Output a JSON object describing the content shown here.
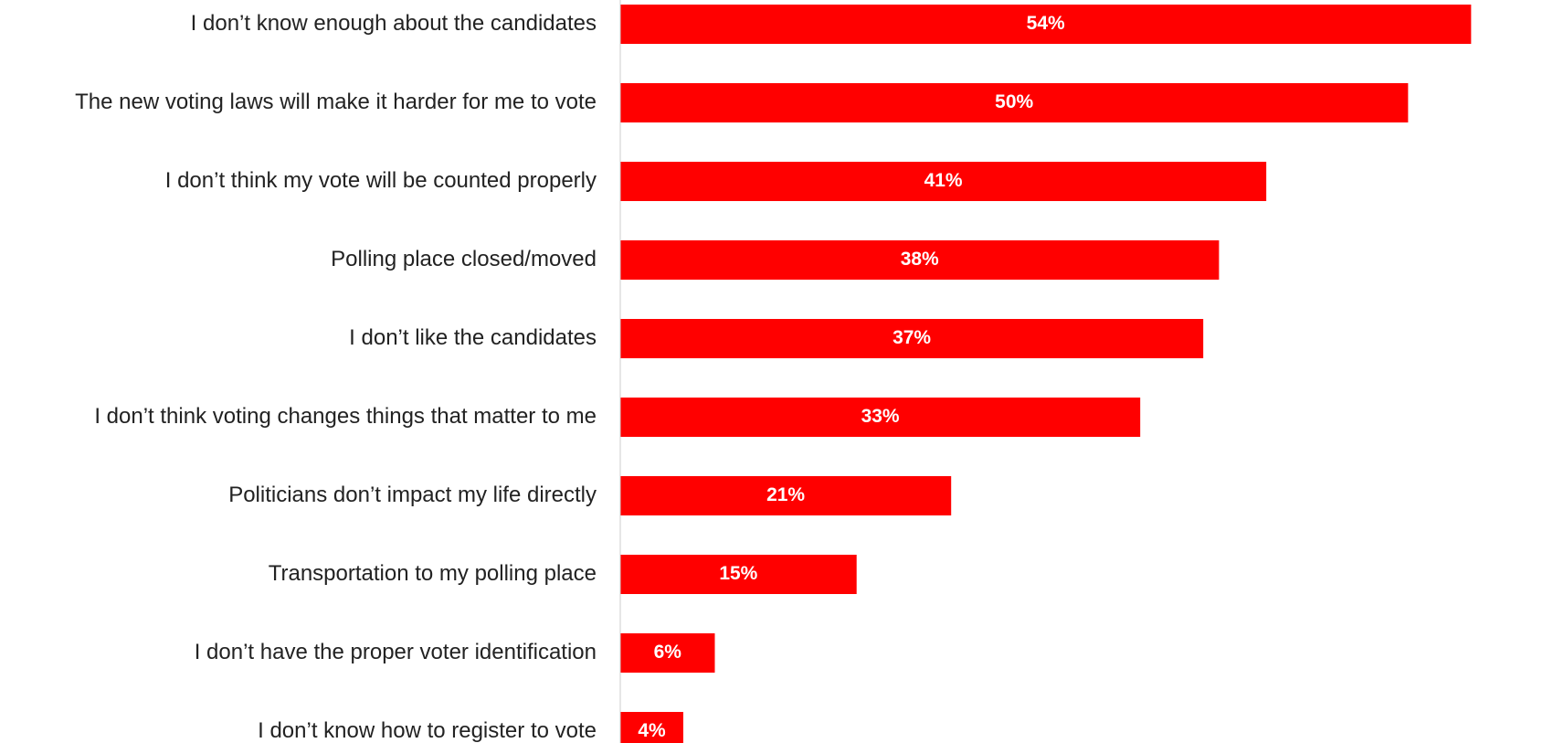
{
  "chart_data": {
    "type": "bar",
    "orientation": "horizontal",
    "categories": [
      "I don’t know enough about the candidates",
      "The new voting laws will make it harder for me to vote",
      "I don’t think my vote will be counted properly",
      "Polling place closed/moved",
      "I don’t like the candidates",
      "I don’t think voting changes things that matter to me",
      "Politicians don’t impact my life directly",
      "Transportation to my polling place",
      "I don’t have the proper voter identification",
      "I don’t know how to register to vote"
    ],
    "values": [
      54,
      50,
      41,
      38,
      37,
      33,
      21,
      15,
      6,
      4
    ],
    "value_labels": [
      "54%",
      "50%",
      "41%",
      "38%",
      "37%",
      "33%",
      "21%",
      "15%",
      "6%",
      "4%"
    ],
    "xlim": [
      0,
      58.5
    ],
    "grid": false,
    "colors": {
      "bar": "#ff0000",
      "value_label": "#ffffff",
      "category_label": "#222222",
      "axis": "#cccccc"
    }
  }
}
